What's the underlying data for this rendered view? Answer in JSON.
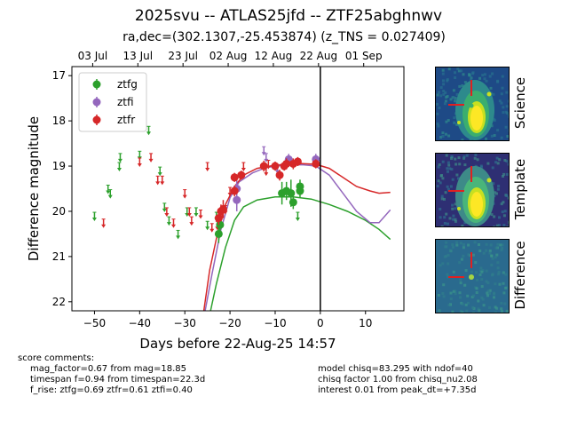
{
  "title": "2025svu -- ATLAS25jfd -- ZTF25abghnwv",
  "subtitle": "ra,dec=(302.1307,-25.453874) (z_TNS = 0.027409)",
  "chart_data": {
    "type": "scatter",
    "xlabel": "Days before 22-Aug-25 14:57",
    "ylabel": "Difference magnitude",
    "xlim": [
      -55,
      18.5
    ],
    "ylim": [
      22.2,
      16.8
    ],
    "x_ticks": [
      -50,
      -40,
      -30,
      -20,
      -10,
      0,
      10
    ],
    "y_ticks": [
      17,
      18,
      19,
      20,
      21,
      22
    ],
    "top_axis_ticks": [
      {
        "x": -50.4,
        "label": "03 Jul"
      },
      {
        "x": -40.4,
        "label": "13 Jul"
      },
      {
        "x": -30.4,
        "label": "23 Jul"
      },
      {
        "x": -20.4,
        "label": "02 Aug"
      },
      {
        "x": -10.4,
        "label": "12 Aug"
      },
      {
        "x": -0.4,
        "label": "22 Aug"
      },
      {
        "x": 9.6,
        "label": "01 Sep"
      }
    ],
    "vline_x": 0,
    "legend": "upper left",
    "series": [
      {
        "name": "ztfg",
        "color": "#2ca02c",
        "detections": [
          {
            "x": -22.5,
            "y": 20.5,
            "err": 0.2
          },
          {
            "x": -22.2,
            "y": 20.3,
            "err": 0.2
          },
          {
            "x": -8.5,
            "y": 19.6,
            "err": 0.25
          },
          {
            "x": -7.5,
            "y": 19.55,
            "err": 0.2
          },
          {
            "x": -6.5,
            "y": 19.6,
            "err": 0.3
          },
          {
            "x": -6.0,
            "y": 19.8,
            "err": 0.15
          },
          {
            "x": -4.5,
            "y": 19.45,
            "err": 0.15
          },
          {
            "x": -4.5,
            "y": 19.55,
            "err": 0.15
          }
        ],
        "upper_limits": [
          {
            "x": -50,
            "y": 20.1
          },
          {
            "x": -47,
            "y": 19.5
          },
          {
            "x": -46.5,
            "y": 19.6
          },
          {
            "x": -44.5,
            "y": 19.0
          },
          {
            "x": -44.3,
            "y": 18.8
          },
          {
            "x": -40,
            "y": 18.75
          },
          {
            "x": -38,
            "y": 18.2
          },
          {
            "x": -35.5,
            "y": 19.1
          },
          {
            "x": -34.5,
            "y": 19.9
          },
          {
            "x": -33.5,
            "y": 20.2
          },
          {
            "x": -31.5,
            "y": 20.5
          },
          {
            "x": -29.5,
            "y": 20.0
          },
          {
            "x": -27.5,
            "y": 20.0
          },
          {
            "x": -25,
            "y": 20.3
          },
          {
            "x": -23,
            "y": 20.1
          },
          {
            "x": -5,
            "y": 20.1
          }
        ]
      },
      {
        "name": "ztfi",
        "color": "#9467bd",
        "detections": [
          {
            "x": -18.5,
            "y": 19.5,
            "err": 0.3
          },
          {
            "x": -18.5,
            "y": 19.75,
            "err": 0.25
          },
          {
            "x": -7,
            "y": 18.85,
            "err": 0.12
          },
          {
            "x": -1,
            "y": 18.85,
            "err": 0.12
          }
        ],
        "upper_limits": [
          {
            "x": -12.5,
            "y": 18.65
          },
          {
            "x": -12,
            "y": 18.8
          },
          {
            "x": -9.5,
            "y": 19.05
          },
          {
            "x": -7,
            "y": 18.9
          }
        ]
      },
      {
        "name": "ztfr",
        "color": "#d62728",
        "detections": [
          {
            "x": -22.5,
            "y": 20.15,
            "err": 0.15
          },
          {
            "x": -22,
            "y": 20.0,
            "err": 0.15
          },
          {
            "x": -21.5,
            "y": 19.95,
            "err": 0.2
          },
          {
            "x": -19,
            "y": 19.25,
            "err": 0.1
          },
          {
            "x": -19,
            "y": 19.55,
            "err": 0.12
          },
          {
            "x": -17.5,
            "y": 19.2,
            "err": 0.1
          },
          {
            "x": -12.5,
            "y": 19.0,
            "err": 0.12
          },
          {
            "x": -10,
            "y": 19.0,
            "err": 0.1
          },
          {
            "x": -9,
            "y": 19.2,
            "err": 0.12
          },
          {
            "x": -8,
            "y": 19.0,
            "err": 0.1
          },
          {
            "x": -7.5,
            "y": 18.95,
            "err": 0.12
          },
          {
            "x": -6,
            "y": 18.95,
            "err": 0.12
          },
          {
            "x": -5,
            "y": 18.9,
            "err": 0.1
          },
          {
            "x": -1,
            "y": 18.95,
            "err": 0.1
          }
        ],
        "upper_limits": [
          {
            "x": -48,
            "y": 20.25
          },
          {
            "x": -40,
            "y": 18.9
          },
          {
            "x": -37.5,
            "y": 18.8
          },
          {
            "x": -36,
            "y": 19.3
          },
          {
            "x": -35,
            "y": 19.3
          },
          {
            "x": -34,
            "y": 20.0
          },
          {
            "x": -32.5,
            "y": 20.25
          },
          {
            "x": -30,
            "y": 19.6
          },
          {
            "x": -29,
            "y": 20.0
          },
          {
            "x": -28.5,
            "y": 20.2
          },
          {
            "x": -26.5,
            "y": 20.05
          },
          {
            "x": -25,
            "y": 19.0
          },
          {
            "x": -24,
            "y": 20.35
          },
          {
            "x": -22.8,
            "y": 20.3
          },
          {
            "x": -22,
            "y": 20.1
          },
          {
            "x": -21,
            "y": 19.95
          },
          {
            "x": -20,
            "y": 19.55
          },
          {
            "x": -17,
            "y": 19.0
          },
          {
            "x": -12,
            "y": 19.1
          },
          {
            "x": -11.5,
            "y": 18.95
          }
        ]
      }
    ],
    "models": [
      {
        "name": "ztfg",
        "color": "#2ca02c",
        "points": [
          [
            -24.3,
            22.2
          ],
          [
            -23,
            21.6
          ],
          [
            -21,
            20.8
          ],
          [
            -19,
            20.2
          ],
          [
            -17,
            19.9
          ],
          [
            -14,
            19.75
          ],
          [
            -10,
            19.68
          ],
          [
            -6,
            19.68
          ],
          [
            -2,
            19.73
          ],
          [
            2,
            19.85
          ],
          [
            6,
            20.0
          ],
          [
            10,
            20.2
          ],
          [
            13,
            20.4
          ],
          [
            15.5,
            20.62
          ]
        ]
      },
      {
        "name": "ztfi",
        "color": "#9467bd",
        "points": [
          [
            -25.5,
            22.2
          ],
          [
            -24,
            21.4
          ],
          [
            -22,
            20.4
          ],
          [
            -20,
            19.7
          ],
          [
            -18,
            19.35
          ],
          [
            -15,
            19.15
          ],
          [
            -12,
            19.03
          ],
          [
            -8,
            18.98
          ],
          [
            -4,
            18.97
          ],
          [
            -1,
            19.0
          ],
          [
            2,
            19.2
          ],
          [
            5,
            19.6
          ],
          [
            8,
            20.0
          ],
          [
            11,
            20.25
          ],
          [
            13,
            20.25
          ],
          [
            15.5,
            19.97
          ]
        ]
      },
      {
        "name": "ztfr",
        "color": "#d62728",
        "points": [
          [
            -25.8,
            22.2
          ],
          [
            -24.5,
            21.3
          ],
          [
            -23,
            20.6
          ],
          [
            -21,
            19.85
          ],
          [
            -19,
            19.45
          ],
          [
            -17,
            19.2
          ],
          [
            -14,
            19.05
          ],
          [
            -10,
            18.98
          ],
          [
            -5,
            18.94
          ],
          [
            -1,
            18.96
          ],
          [
            2,
            19.05
          ],
          [
            5,
            19.25
          ],
          [
            8,
            19.45
          ],
          [
            11,
            19.55
          ],
          [
            13,
            19.6
          ],
          [
            15.5,
            19.58
          ]
        ]
      }
    ]
  },
  "cutouts": [
    {
      "label": "Science",
      "colors": [
        "#1e4a86",
        "#26718f",
        "#2d8a8c",
        "#3bae6e",
        "#c8e020",
        "#fde725"
      ]
    },
    {
      "label": "Template",
      "colors": [
        "#2e2f73",
        "#2d6f8e",
        "#3d8a88",
        "#49b57a",
        "#c8e020",
        "#fde725"
      ]
    },
    {
      "label": "Difference",
      "colors": [
        "#2a6a8e",
        "#2f7e8c",
        "#3a958a",
        "#56b66e",
        "#a6d642"
      ]
    }
  ],
  "comments_left": {
    "header": "score comments:",
    "lines": [
      "mag_factor=0.67 from mag=18.85",
      "timespan f=0.94 from timespan=22.3d",
      "f_rise: ztfg=0.69 ztfr=0.61 ztfi=0.40"
    ]
  },
  "comments_right": {
    "lines": [
      "model chisq=83.295 with ndof=40",
      "chisq factor 1.00 from chisq_nu2.08",
      "interest 0.01 from peak_dt=+7.35d"
    ]
  }
}
